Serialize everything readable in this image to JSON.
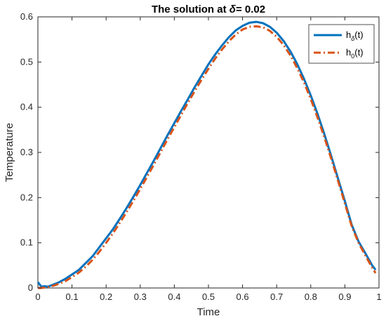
{
  "chart_data": {
    "type": "line",
    "title_prefix": "The solution at ",
    "title_symbol": "δ",
    "title_suffix": "= 0.02",
    "xlabel": "Time",
    "ylabel": "Temperature",
    "xlim": [
      0,
      1
    ],
    "ylim": [
      0,
      0.6
    ],
    "xticks": [
      "0",
      "0.1",
      "0.2",
      "0.3",
      "0.4",
      "0.5",
      "0.6",
      "0.7",
      "0.8",
      "0.9",
      "1"
    ],
    "yticks": [
      "0",
      "0.1",
      "0.2",
      "0.3",
      "0.4",
      "0.5",
      "0.6"
    ],
    "grid": false,
    "legend_position": "top-right",
    "x": [
      0,
      0.01,
      0.02,
      0.03,
      0.04,
      0.05,
      0.06,
      0.08,
      0.1,
      0.12,
      0.14,
      0.16,
      0.18,
      0.2,
      0.22,
      0.24,
      0.26,
      0.28,
      0.3,
      0.32,
      0.34,
      0.36,
      0.38,
      0.4,
      0.42,
      0.44,
      0.46,
      0.48,
      0.5,
      0.52,
      0.54,
      0.56,
      0.58,
      0.6,
      0.62,
      0.64,
      0.66,
      0.68,
      0.7,
      0.72,
      0.74,
      0.76,
      0.78,
      0.8,
      0.82,
      0.84,
      0.86,
      0.88,
      0.9,
      0.92,
      0.94,
      0.96,
      0.98,
      0.99
    ],
    "series": [
      {
        "name": "hδ(t)",
        "label_main": "h",
        "label_sub": "δ",
        "label_tail": "(t)",
        "color": "#0072BD",
        "dash": "solid",
        "values": [
          0.013,
          0.003,
          0.004,
          0.003,
          0.006,
          0.009,
          0.012,
          0.02,
          0.03,
          0.04,
          0.055,
          0.07,
          0.09,
          0.11,
          0.13,
          0.153,
          0.177,
          0.202,
          0.228,
          0.255,
          0.282,
          0.31,
          0.338,
          0.365,
          0.392,
          0.418,
          0.445,
          0.47,
          0.495,
          0.517,
          0.537,
          0.555,
          0.57,
          0.58,
          0.587,
          0.589,
          0.586,
          0.578,
          0.565,
          0.547,
          0.524,
          0.496,
          0.463,
          0.426,
          0.385,
          0.34,
          0.292,
          0.242,
          0.192,
          0.14,
          0.103,
          0.077,
          0.05,
          0.04
        ]
      },
      {
        "name": "h0(t)",
        "label_main": "h",
        "label_sub": "0",
        "label_tail": "(t)",
        "color": "#D95319",
        "dash": "dashdot",
        "values": [
          0.0,
          0.0,
          0.001,
          0.002,
          0.004,
          0.006,
          0.009,
          0.015,
          0.024,
          0.034,
          0.047,
          0.062,
          0.08,
          0.1,
          0.121,
          0.144,
          0.168,
          0.193,
          0.219,
          0.246,
          0.273,
          0.301,
          0.329,
          0.356,
          0.383,
          0.41,
          0.436,
          0.461,
          0.485,
          0.508,
          0.528,
          0.546,
          0.561,
          0.572,
          0.578,
          0.579,
          0.577,
          0.569,
          0.556,
          0.538,
          0.515,
          0.487,
          0.455,
          0.418,
          0.377,
          0.333,
          0.286,
          0.237,
          0.187,
          0.137,
          0.1,
          0.072,
          0.045,
          0.033
        ]
      }
    ]
  }
}
